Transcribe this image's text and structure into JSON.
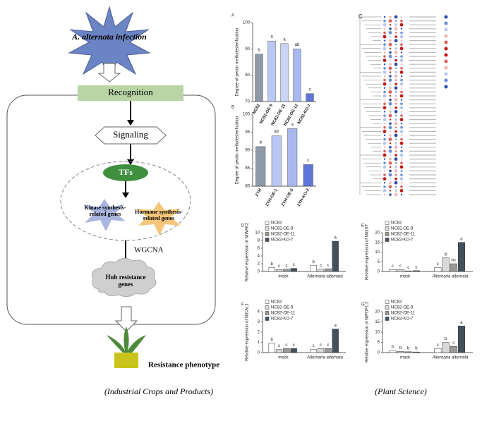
{
  "diagram": {
    "nodes": [
      {
        "label": "A. alternata infection"
      },
      {
        "label": "Recognition"
      },
      {
        "label": "Signaling"
      },
      {
        "label": "TFs"
      },
      {
        "label": "Kinase synthesis-related genes"
      },
      {
        "label": "Hormone synthesis-related genes"
      },
      {
        "label": "Hub resistance genes"
      },
      {
        "label": "Resistance phenotype"
      }
    ],
    "edge_label": "WGCNA"
  },
  "chart_data": [
    {
      "type": "bar",
      "panel": "A",
      "y_label": "Degree of pectin methylesterification",
      "categories": [
        "NC82",
        "NC82-OE-9",
        "NC82-OE-11",
        "NC82-OE-12",
        "NC82-KO-7"
      ],
      "values": [
        88,
        93,
        92,
        90,
        73
      ],
      "letters": [
        "b",
        "a",
        "a",
        "ab",
        "c"
      ],
      "colors": [
        "#8e9aa6",
        "#b9c8f2",
        "#c9d4f5",
        "#a9b9ee",
        "#5f76d8"
      ],
      "ylim": [
        70,
        100
      ],
      "yticks": [
        70,
        80,
        90,
        100
      ]
    },
    {
      "type": "bar",
      "panel": "B",
      "y_label": "Degree of pectin methylesterification",
      "categories": [
        "ZYH",
        "ZYH-OE-1",
        "ZYH-OE-5",
        "ZYH-KO-2"
      ],
      "values": [
        91,
        94,
        96,
        86
      ],
      "letters": [
        "b",
        "ab",
        "a",
        "c"
      ],
      "colors": [
        "#8e9aa6",
        "#b9c8f2",
        "#a9b9ee",
        "#5f76d8"
      ],
      "ylim": [
        80,
        100
      ],
      "yticks": [
        80,
        85,
        90,
        95,
        100
      ]
    },
    {
      "type": "grouped-bar",
      "panel": "D",
      "y_label": "Relative expression of NtWAK2",
      "categories": [
        "mock",
        "Alternaria alternata"
      ],
      "series": [
        {
          "name": "NC82",
          "color": "#ffffff",
          "values": [
            1.0,
            1.6
          ],
          "letters": [
            "b",
            "b"
          ]
        },
        {
          "name": "NC82-OE-9",
          "color": "#d9d9d9",
          "values": [
            0.5,
            0.6
          ],
          "letters": [
            "c",
            "c"
          ]
        },
        {
          "name": "NC82-OE-11",
          "color": "#9a9a9a",
          "values": [
            0.6,
            0.7
          ],
          "letters": [
            "c",
            "c"
          ]
        },
        {
          "name": "NC82-KO-7",
          "color": "#44505c",
          "values": [
            0.8,
            7.8
          ],
          "letters": [
            "c",
            "a"
          ]
        }
      ],
      "ylim": [
        0,
        10
      ],
      "yticks": [
        0,
        2,
        4,
        6,
        8,
        10
      ]
    },
    {
      "type": "grouped-bar",
      "panel": "E",
      "y_label": "Relative expression of NtGST",
      "categories": [
        "mock",
        "Alternaria alternata"
      ],
      "series": [
        {
          "name": "NC82",
          "color": "#ffffff",
          "values": [
            1.0,
            2.0
          ],
          "letters": [
            "c",
            "c"
          ]
        },
        {
          "name": "NC82-OE-9",
          "color": "#d9d9d9",
          "values": [
            1.0,
            7.0
          ],
          "letters": [
            "c",
            "b"
          ]
        },
        {
          "name": "NC82-OE-11",
          "color": "#9a9a9a",
          "values": [
            0.3,
            4.0
          ],
          "letters": [
            "c",
            "bc"
          ]
        },
        {
          "name": "NC82-KO-7",
          "color": "#44505c",
          "values": [
            0.4,
            15
          ],
          "letters": [
            "c",
            "a"
          ]
        }
      ],
      "ylim": [
        0,
        20
      ],
      "yticks": [
        0,
        5,
        10,
        15,
        20
      ]
    },
    {
      "type": "grouped-bar",
      "panel": "F",
      "y_label": "Relative expression of NtCAL1",
      "categories": [
        "mock",
        "Alternaria alternata"
      ],
      "series": [
        {
          "name": "NC82",
          "color": "#ffffff",
          "values": [
            0.9,
            0.3
          ],
          "letters": [
            "b",
            "c"
          ]
        },
        {
          "name": "NC82-OE-9",
          "color": "#d9d9d9",
          "values": [
            0.3,
            0.4
          ],
          "letters": [
            "c",
            "c"
          ]
        },
        {
          "name": "NC82-OE-11",
          "color": "#9a9a9a",
          "values": [
            0.4,
            0.4
          ],
          "letters": [
            "c",
            "c"
          ]
        },
        {
          "name": "NC82-KO-7",
          "color": "#44505c",
          "values": [
            0.4,
            2.3
          ],
          "letters": [
            "c",
            "a"
          ]
        }
      ],
      "ylim": [
        0,
        4
      ],
      "yticks": [
        0,
        1,
        2,
        3,
        4
      ]
    },
    {
      "type": "grouped-bar",
      "panel": "G",
      "y_label": "Relative expression of NtPDF1.2",
      "categories": [
        "mock",
        "Alternaria alternata"
      ],
      "series": [
        {
          "name": "NC82",
          "color": "#ffffff",
          "values": [
            1.0,
            2.0
          ],
          "letters": [
            "b",
            "c"
          ]
        },
        {
          "name": "NC82-OE-9",
          "color": "#d9d9d9",
          "values": [
            0.6,
            5.0
          ],
          "letters": [
            "b",
            "b"
          ]
        },
        {
          "name": "NC82-OE-11",
          "color": "#9a9a9a",
          "values": [
            0.4,
            3.0
          ],
          "letters": [
            "b",
            "c"
          ]
        },
        {
          "name": "NC82-KO-7",
          "color": "#44505c",
          "values": [
            0.3,
            13
          ],
          "letters": [
            "b",
            "a"
          ]
        }
      ],
      "ylim": [
        0,
        20
      ],
      "yticks": [
        0,
        5,
        10,
        15,
        20
      ]
    }
  ],
  "heatmap_panel": "C",
  "captions": [
    "(Industrial Crops and Products)",
    "(Plant Science)"
  ]
}
